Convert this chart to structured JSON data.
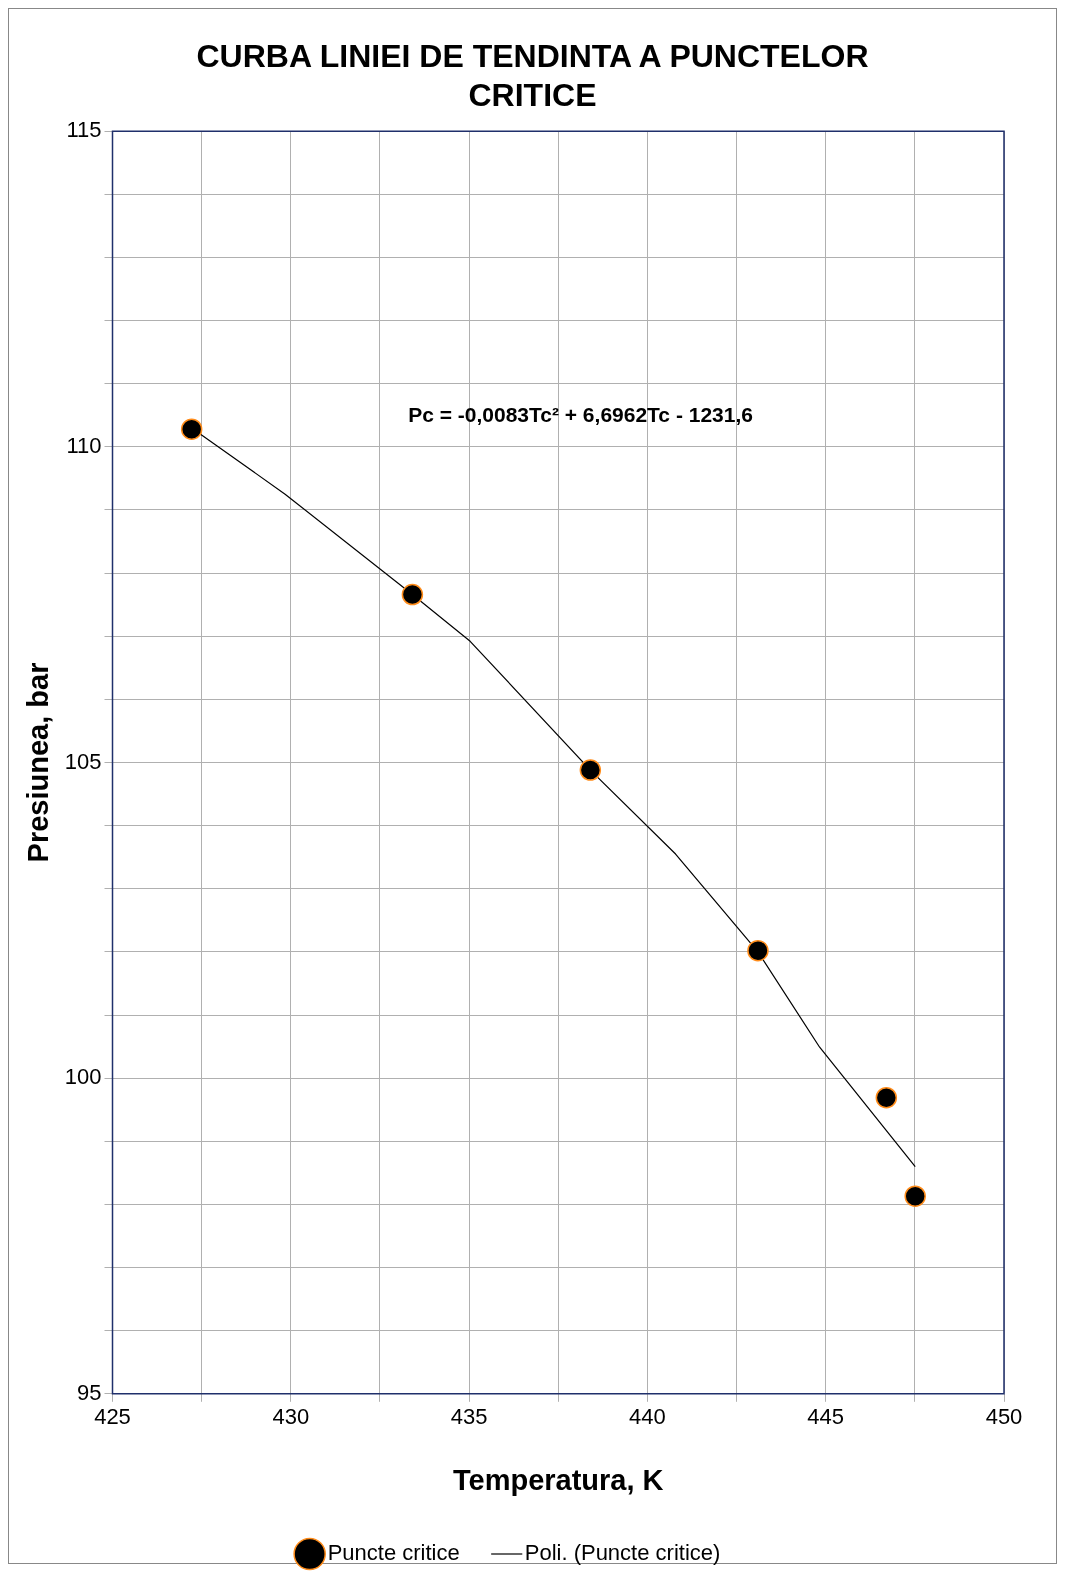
{
  "chart_data": {
    "type": "scatter",
    "title": "CURBA LINIEI DE TENDINTA A PUNCTELOR CRITICE",
    "xlabel": "Temperatura, K",
    "ylabel": "Presiunea, bar",
    "xlim": [
      425,
      450
    ],
    "xticks": [
      425,
      {
        "value": 427.5,
        "label": null
      },
      430,
      {
        "value": 432.5,
        "label": null
      },
      435,
      {
        "value": 437.5,
        "label": null
      },
      440,
      {
        "value": 442.5,
        "label": null
      },
      445,
      {
        "value": 447.5,
        "label": null
      },
      450
    ],
    "ylim": [
      95,
      115
    ],
    "yticks": [
      95,
      {
        "value": 96,
        "label": null
      },
      {
        "value": 97,
        "label": null
      },
      {
        "value": 98,
        "label": null
      },
      {
        "value": 99,
        "label": null
      },
      100,
      {
        "value": 101,
        "label": null
      },
      {
        "value": 102,
        "label": null
      },
      {
        "value": 103,
        "label": null
      },
      {
        "value": 104,
        "label": null
      },
      105,
      {
        "value": 106,
        "label": null
      },
      {
        "value": 107,
        "label": null
      },
      {
        "value": 108,
        "label": null
      },
      {
        "value": 109,
        "label": null
      },
      110,
      {
        "value": 111,
        "label": null
      },
      {
        "value": 112,
        "label": null
      },
      {
        "value": 113,
        "label": null
      },
      {
        "value": 114,
        "label": null
      },
      115
    ],
    "grid": true,
    "legend": "bottom",
    "series": [
      {
        "name": "Puncte critice",
        "marker": "circle",
        "color": "#000000",
        "x": [
          427.22,
          433.41,
          438.4,
          443.1,
          446.7,
          447.51
        ],
        "values": [
          110.28,
          107.66,
          104.88,
          102.02,
          99.69,
          98.13
        ]
      },
      {
        "name": "Poli. (Puncte critice)",
        "type": "line",
        "marker": "none",
        "color": "#000000",
        "line_style": "solid",
        "x": [
          427.22,
          429.84,
          433.41,
          435.03,
          438.4,
          440.79,
          443.1,
          444.83,
          447.51
        ],
        "values": [
          110.3,
          109.25,
          107.66,
          106.92,
          104.88,
          103.55,
          102.0,
          100.49,
          98.6
        ]
      }
    ],
    "annotations": [
      "Pc = -0,0083Tc² + 6,6962Tc - 1231,6"
    ]
  }
}
